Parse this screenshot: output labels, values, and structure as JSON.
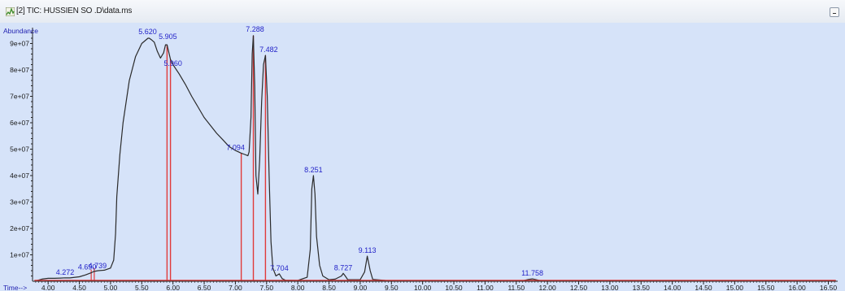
{
  "window": {
    "title": "[2] TIC: HUSSIEN  SO .D\\data.ms",
    "icon": "chromatogram-icon",
    "button": "restore-icon"
  },
  "chart_data": {
    "type": "line",
    "title": "",
    "xlabel": "Time-->",
    "ylabel": "Abundance",
    "xlim": [
      3.75,
      16.65
    ],
    "ylim": [
      0,
      96000000
    ],
    "x_ticks": [
      "4.00",
      "4.50",
      "5.00",
      "5.50",
      "6.00",
      "6.50",
      "7.00",
      "7.50",
      "8.00",
      "8.50",
      "9.00",
      "9.50",
      "10.00",
      "10.50",
      "11.00",
      "11.50",
      "12.00",
      "12.50",
      "13.00",
      "13.50",
      "14.00",
      "14.50",
      "15.00",
      "15.50",
      "16.00",
      "16.50"
    ],
    "y_ticks": [
      "1e+07",
      "2e+07",
      "3e+07",
      "4e+07",
      "5e+07",
      "6e+07",
      "7e+07",
      "8e+07",
      "9e+07"
    ],
    "colors": {
      "background": "#d6e3f9",
      "trace": "#2a2a2a",
      "peak_marker": "#e03a3a",
      "label": "#2323c8",
      "axis": "#222222"
    },
    "series": [
      {
        "x": [
          3.78,
          3.9,
          4.0,
          4.1,
          4.2,
          4.272,
          4.35,
          4.5,
          4.6,
          4.69,
          4.73,
          4.8,
          4.9,
          5.0,
          5.05,
          5.08,
          5.1,
          5.15,
          5.2,
          5.3,
          5.4,
          5.5,
          5.6,
          5.62,
          5.65,
          5.7,
          5.75,
          5.8,
          5.85,
          5.88,
          5.905,
          5.93,
          5.96,
          6.0,
          6.1,
          6.2,
          6.3,
          6.4,
          6.5,
          6.6,
          6.7,
          6.8,
          6.9,
          7.0,
          7.094,
          7.15,
          7.2,
          7.22,
          7.25,
          7.27,
          7.288,
          7.31,
          7.33,
          7.36,
          7.39,
          7.42,
          7.45,
          7.482,
          7.51,
          7.54,
          7.57,
          7.6,
          7.65,
          7.704,
          7.75,
          7.8,
          8.0,
          8.15,
          8.2,
          8.225,
          8.251,
          8.275,
          8.3,
          8.35,
          8.4,
          8.5,
          8.6,
          8.7,
          8.727,
          8.76,
          8.8,
          9.0,
          9.07,
          9.113,
          9.16,
          9.2,
          9.4,
          10.0,
          11.0,
          11.6,
          11.7,
          11.758,
          11.82,
          11.9,
          12.5,
          13.5,
          14.5,
          15.5,
          16.5,
          16.62
        ],
        "y": [
          0,
          800000,
          1100000,
          1100000,
          1200000,
          1300000,
          1250000,
          1700000,
          2400000,
          3200000,
          3700000,
          4000000,
          4200000,
          5000000,
          8000000,
          18000000,
          32000000,
          48000000,
          60000000,
          76000000,
          85000000,
          90000000,
          92000000,
          92000000,
          91500000,
          90500000,
          87000000,
          84500000,
          86500000,
          89500000,
          89500000,
          87000000,
          84000000,
          82000000,
          78500000,
          74500000,
          70000000,
          66000000,
          62000000,
          59000000,
          56000000,
          53500000,
          51000000,
          49500000,
          48500000,
          48000000,
          47500000,
          49000000,
          62000000,
          86000000,
          93000000,
          74000000,
          40000000,
          33000000,
          46000000,
          68000000,
          82000000,
          85500000,
          70000000,
          40000000,
          15000000,
          5000000,
          2000000,
          2800000,
          1000000,
          400000,
          300000,
          1500000,
          12000000,
          35000000,
          40000000,
          33000000,
          17000000,
          6000000,
          2000000,
          600000,
          800000,
          2000000,
          3000000,
          2000000,
          600000,
          600000,
          3500000,
          9500000,
          4000000,
          700000,
          300000,
          200000,
          150000,
          200000,
          700000,
          900000,
          600000,
          200000,
          150000,
          100000,
          100000,
          100000,
          100000,
          100000
        ]
      }
    ],
    "peaks": [
      {
        "rt": 4.272,
        "label": "4.272",
        "marker": false
      },
      {
        "rt": 4.69,
        "label": "4.690",
        "marker": false
      },
      {
        "rt": 4.739,
        "label": "4.739",
        "marker": false
      },
      {
        "rt": 5.62,
        "label": "5.620",
        "marker": false
      },
      {
        "rt": 5.905,
        "label": "5.905",
        "marker": true
      },
      {
        "rt": 5.96,
        "label": "5.960",
        "marker": true
      },
      {
        "rt": 7.094,
        "label": "7.094",
        "marker": true
      },
      {
        "rt": 7.288,
        "label": "7.288",
        "marker": true
      },
      {
        "rt": 7.482,
        "label": "7.482",
        "marker": true
      },
      {
        "rt": 7.704,
        "label": "7.704",
        "marker": false
      },
      {
        "rt": 8.251,
        "label": "8.251",
        "marker": false
      },
      {
        "rt": 8.727,
        "label": "8.727",
        "marker": false
      },
      {
        "rt": 9.113,
        "label": "9.113",
        "marker": false
      },
      {
        "rt": 11.758,
        "label": "11.758",
        "marker": false
      }
    ]
  }
}
